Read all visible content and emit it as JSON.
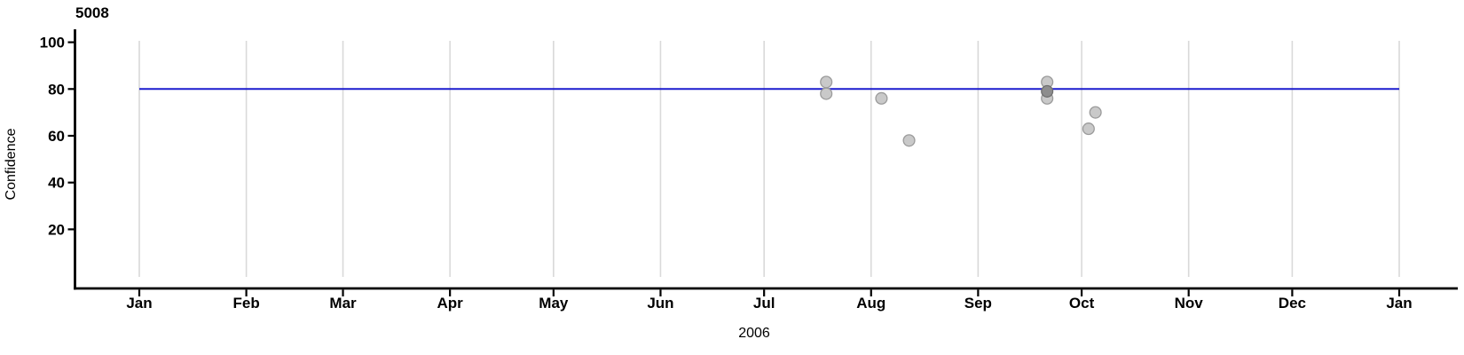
{
  "chart_data": {
    "type": "scatter",
    "title": "5008",
    "xlabel": "2006",
    "ylabel": "Confidence",
    "y_axis": {
      "ticks": [
        20,
        40,
        60,
        80,
        100
      ],
      "range": [
        0,
        105
      ],
      "grid": false
    },
    "x_axis": {
      "type": "time",
      "range": [
        "2006-01-01",
        "2007-01-01"
      ],
      "grid": "vertical",
      "ticks": [
        {
          "date": "2006-01-01",
          "label": "Jan"
        },
        {
          "date": "2006-02-01",
          "label": "Feb"
        },
        {
          "date": "2006-03-01",
          "label": "Mar"
        },
        {
          "date": "2006-04-01",
          "label": "Apr"
        },
        {
          "date": "2006-05-01",
          "label": "May"
        },
        {
          "date": "2006-06-01",
          "label": "Jun"
        },
        {
          "date": "2006-07-01",
          "label": "Jul"
        },
        {
          "date": "2006-08-01",
          "label": "Aug"
        },
        {
          "date": "2006-09-01",
          "label": "Sep"
        },
        {
          "date": "2006-10-01",
          "label": "Oct"
        },
        {
          "date": "2006-11-01",
          "label": "Nov"
        },
        {
          "date": "2006-12-01",
          "label": "Dec"
        },
        {
          "date": "2007-01-01",
          "label": "Jan"
        }
      ]
    },
    "reference_line": {
      "value": 80,
      "start": "2006-01-01",
      "end": "2007-01-01",
      "color": "#1b1bce"
    },
    "points": [
      {
        "date": "2006-07-19",
        "confidence": 83
      },
      {
        "date": "2006-07-19",
        "confidence": 78
      },
      {
        "date": "2006-08-04",
        "confidence": 76
      },
      {
        "date": "2006-08-12",
        "confidence": 58
      },
      {
        "date": "2006-09-21",
        "confidence": 83
      },
      {
        "date": "2006-09-21",
        "confidence": 76
      },
      {
        "date": "2006-09-21",
        "confidence": 79,
        "overplotted": true
      },
      {
        "date": "2006-10-03",
        "confidence": 63
      },
      {
        "date": "2006-10-05",
        "confidence": 70
      }
    ],
    "style": {
      "point_fill": "#c9c9c9",
      "point_stroke": "#9b9b9b",
      "overplotted_fill": "#8d8d8d",
      "overplotted_stroke": "#6f6f6f",
      "gridline_color": "#d9d9d9",
      "axis_color": "#000000",
      "reference_line_color": "#1b1bce"
    }
  }
}
